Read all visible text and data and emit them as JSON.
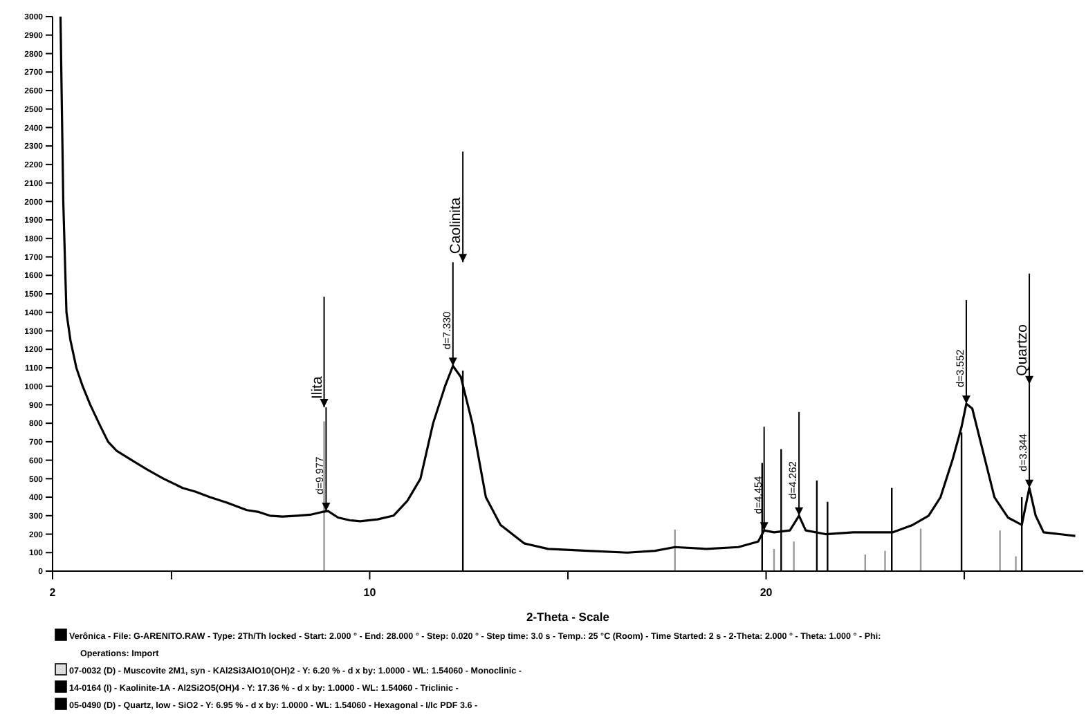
{
  "chart_data": {
    "type": "line",
    "xlabel": "2-Theta - Scale",
    "xlim": [
      2,
      28
    ],
    "ylim": [
      0,
      3000
    ],
    "xticks": [
      2,
      {
        "value": 5,
        "label": null
      },
      10,
      {
        "value": 15,
        "label": null
      },
      20,
      {
        "value": 25,
        "label": null
      }
    ],
    "yticks": [
      0,
      100,
      200,
      300,
      400,
      500,
      600,
      700,
      800,
      900,
      1000,
      1100,
      1200,
      1300,
      1400,
      1500,
      1600,
      1700,
      1800,
      1900,
      2000,
      2100,
      2200,
      2300,
      2400,
      2500,
      2600,
      2700,
      2800,
      2900,
      3000
    ],
    "grid": false,
    "series": [
      {
        "type": "bar",
        "color": "#999999",
        "x": [
          8.85,
          17.7,
          20.2,
          20.7,
          22.5,
          23.0,
          23.9,
          25.9,
          26.3
        ],
        "values": [
          810,
          225,
          120,
          160,
          90,
          110,
          230,
          220,
          80
        ]
      },
      {
        "type": "bar",
        "color": "#000000",
        "x": [
          12.35,
          19.9,
          20.38,
          21.28,
          21.55,
          23.17,
          24.93,
          26.45
        ],
        "values": [
          1085,
          585,
          660,
          490,
          375,
          450,
          750,
          400
        ]
      },
      {
        "color": "#000000",
        "x": [
          2.2,
          2.27,
          2.35,
          2.45,
          2.6,
          2.76,
          2.95,
          3.17,
          3.4,
          3.62,
          4.0,
          4.38,
          4.8,
          5.28,
          5.6,
          5.97,
          6.4,
          6.9,
          7.2,
          7.48,
          7.8,
          8.17,
          8.5,
          8.8,
          8.95,
          9.2,
          9.5,
          9.76,
          10.2,
          10.6,
          10.95,
          11.28,
          11.6,
          11.9,
          12.1,
          12.3,
          12.59,
          12.93,
          13.3,
          13.9,
          14.5,
          15.5,
          16.5,
          17.2,
          17.7,
          18.5,
          19.3,
          19.8,
          19.95,
          20.2,
          20.6,
          20.83,
          21.0,
          21.5,
          22.2,
          23.2,
          23.7,
          24.1,
          24.4,
          24.7,
          24.93,
          25.05,
          25.2,
          25.41,
          25.76,
          26.1,
          26.45,
          26.64,
          26.8,
          27.0,
          27.4,
          27.8
        ],
        "values": [
          3000,
          2000,
          1400,
          1250,
          1100,
          1000,
          900,
          800,
          700,
          650,
          600,
          550,
          500,
          450,
          430,
          400,
          370,
          330,
          320,
          300,
          295,
          300,
          305,
          320,
          325,
          290,
          275,
          270,
          280,
          300,
          380,
          500,
          800,
          1000,
          1110,
          1050,
          800,
          400,
          250,
          150,
          120,
          110,
          100,
          110,
          130,
          120,
          130,
          160,
          220,
          210,
          220,
          300,
          220,
          200,
          210,
          210,
          250,
          300,
          400,
          600,
          780,
          905,
          880,
          700,
          400,
          290,
          250,
          450,
          300,
          210,
          200,
          190
        ]
      }
    ],
    "annotations": [
      {
        "text": "Ilita",
        "x": 8.85,
        "y": 810
      },
      {
        "text": "d=9.977",
        "x": 8.9,
        "y": 325
      },
      {
        "text": "Caolinita",
        "x": 12.35,
        "y": 1085
      },
      {
        "text": "d=7.330",
        "x": 12.1,
        "y": 1110
      },
      {
        "text": "d=4.454",
        "x": 19.95,
        "y": 220
      },
      {
        "text": "d=4.262",
        "x": 20.83,
        "y": 300
      },
      {
        "text": "d=3.552",
        "x": 25.05,
        "y": 905
      },
      {
        "text": "Quartzo",
        "x": 26.64,
        "y": 450
      },
      {
        "text": "d=3.344",
        "x": 26.64,
        "y": 450
      },
      "Verônica - File: G-ARENITO.RAW - Type: 2Th/Th locked - Start: 2.000 ° - End: 28.000 ° - Step: 0.020 ° - Step time: 3.0 s - Temp.: 25 °C (Room) - Time Started: 2 s - 2-Theta: 2.000 ° - Theta: 1.000 ° - Phi:",
      "Operations: Import",
      "07-0032 (D) - Muscovite 2M1, syn - KAl2Si3AlO10(OH)2 - Y: 6.20 % - d x by: 1.0000 - WL: 1.54060 - Monoclinic -",
      "14-0164 (I) - Kaolinite-1A - Al2Si2O5(OH)4 - Y: 17.36 % - d x by: 1.0000 - WL: 1.54060 - Triclinic -",
      "05-0490 (D) - Quartz, low - SiO2 - Y: 6.95 % - d x by: 1.0000 - WL: 1.54060 - Hexagonal - I/Ic PDF 3.6 -"
    ]
  }
}
